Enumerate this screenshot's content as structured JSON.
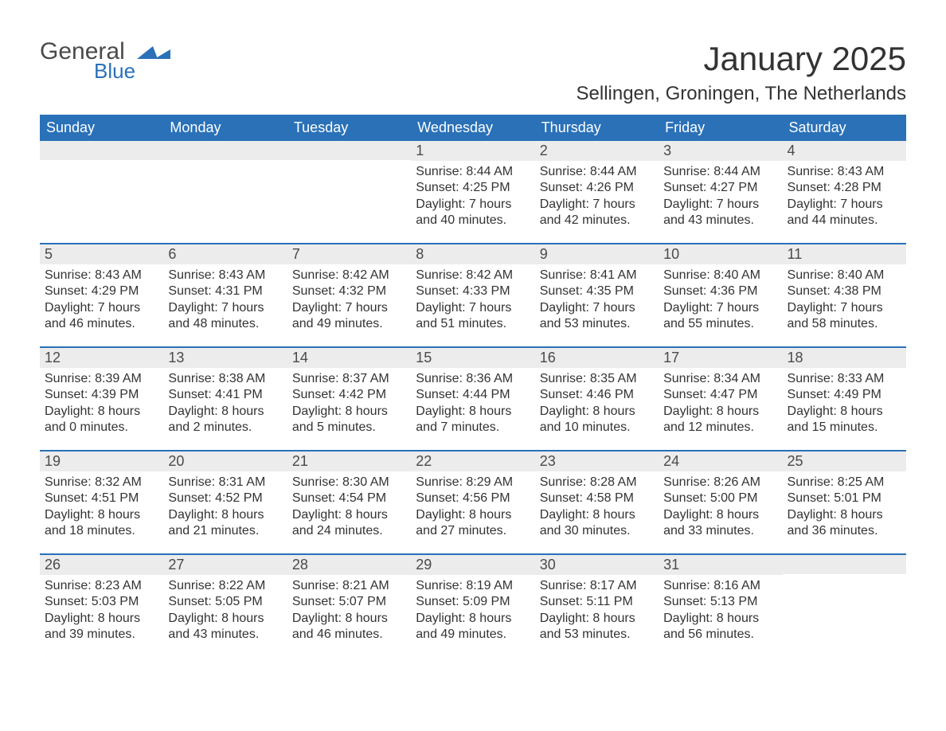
{
  "brand": {
    "general": "General",
    "blue": "Blue",
    "icon_color": "#2a71b8"
  },
  "header": {
    "title": "January 2025",
    "location": "Sellingen, Groningen, The Netherlands"
  },
  "colors": {
    "header_bg": "#2a71b8",
    "header_text": "#ffffff",
    "daynum_bg": "#ececec",
    "week_border": "#2a71b8",
    "body_text": "#333333",
    "page_bg": "#ffffff"
  },
  "fonts": {
    "title_size_pt": 32,
    "location_size_pt": 18,
    "header_size_pt": 14,
    "body_size_pt": 12
  },
  "day_names": [
    "Sunday",
    "Monday",
    "Tuesday",
    "Wednesday",
    "Thursday",
    "Friday",
    "Saturday"
  ],
  "weeks": [
    [
      null,
      null,
      null,
      {
        "n": "1",
        "sunrise": "Sunrise: 8:44 AM",
        "sunset": "Sunset: 4:25 PM",
        "dl1": "Daylight: 7 hours",
        "dl2": "and 40 minutes."
      },
      {
        "n": "2",
        "sunrise": "Sunrise: 8:44 AM",
        "sunset": "Sunset: 4:26 PM",
        "dl1": "Daylight: 7 hours",
        "dl2": "and 42 minutes."
      },
      {
        "n": "3",
        "sunrise": "Sunrise: 8:44 AM",
        "sunset": "Sunset: 4:27 PM",
        "dl1": "Daylight: 7 hours",
        "dl2": "and 43 minutes."
      },
      {
        "n": "4",
        "sunrise": "Sunrise: 8:43 AM",
        "sunset": "Sunset: 4:28 PM",
        "dl1": "Daylight: 7 hours",
        "dl2": "and 44 minutes."
      }
    ],
    [
      {
        "n": "5",
        "sunrise": "Sunrise: 8:43 AM",
        "sunset": "Sunset: 4:29 PM",
        "dl1": "Daylight: 7 hours",
        "dl2": "and 46 minutes."
      },
      {
        "n": "6",
        "sunrise": "Sunrise: 8:43 AM",
        "sunset": "Sunset: 4:31 PM",
        "dl1": "Daylight: 7 hours",
        "dl2": "and 48 minutes."
      },
      {
        "n": "7",
        "sunrise": "Sunrise: 8:42 AM",
        "sunset": "Sunset: 4:32 PM",
        "dl1": "Daylight: 7 hours",
        "dl2": "and 49 minutes."
      },
      {
        "n": "8",
        "sunrise": "Sunrise: 8:42 AM",
        "sunset": "Sunset: 4:33 PM",
        "dl1": "Daylight: 7 hours",
        "dl2": "and 51 minutes."
      },
      {
        "n": "9",
        "sunrise": "Sunrise: 8:41 AM",
        "sunset": "Sunset: 4:35 PM",
        "dl1": "Daylight: 7 hours",
        "dl2": "and 53 minutes."
      },
      {
        "n": "10",
        "sunrise": "Sunrise: 8:40 AM",
        "sunset": "Sunset: 4:36 PM",
        "dl1": "Daylight: 7 hours",
        "dl2": "and 55 minutes."
      },
      {
        "n": "11",
        "sunrise": "Sunrise: 8:40 AM",
        "sunset": "Sunset: 4:38 PM",
        "dl1": "Daylight: 7 hours",
        "dl2": "and 58 minutes."
      }
    ],
    [
      {
        "n": "12",
        "sunrise": "Sunrise: 8:39 AM",
        "sunset": "Sunset: 4:39 PM",
        "dl1": "Daylight: 8 hours",
        "dl2": "and 0 minutes."
      },
      {
        "n": "13",
        "sunrise": "Sunrise: 8:38 AM",
        "sunset": "Sunset: 4:41 PM",
        "dl1": "Daylight: 8 hours",
        "dl2": "and 2 minutes."
      },
      {
        "n": "14",
        "sunrise": "Sunrise: 8:37 AM",
        "sunset": "Sunset: 4:42 PM",
        "dl1": "Daylight: 8 hours",
        "dl2": "and 5 minutes."
      },
      {
        "n": "15",
        "sunrise": "Sunrise: 8:36 AM",
        "sunset": "Sunset: 4:44 PM",
        "dl1": "Daylight: 8 hours",
        "dl2": "and 7 minutes."
      },
      {
        "n": "16",
        "sunrise": "Sunrise: 8:35 AM",
        "sunset": "Sunset: 4:46 PM",
        "dl1": "Daylight: 8 hours",
        "dl2": "and 10 minutes."
      },
      {
        "n": "17",
        "sunrise": "Sunrise: 8:34 AM",
        "sunset": "Sunset: 4:47 PM",
        "dl1": "Daylight: 8 hours",
        "dl2": "and 12 minutes."
      },
      {
        "n": "18",
        "sunrise": "Sunrise: 8:33 AM",
        "sunset": "Sunset: 4:49 PM",
        "dl1": "Daylight: 8 hours",
        "dl2": "and 15 minutes."
      }
    ],
    [
      {
        "n": "19",
        "sunrise": "Sunrise: 8:32 AM",
        "sunset": "Sunset: 4:51 PM",
        "dl1": "Daylight: 8 hours",
        "dl2": "and 18 minutes."
      },
      {
        "n": "20",
        "sunrise": "Sunrise: 8:31 AM",
        "sunset": "Sunset: 4:52 PM",
        "dl1": "Daylight: 8 hours",
        "dl2": "and 21 minutes."
      },
      {
        "n": "21",
        "sunrise": "Sunrise: 8:30 AM",
        "sunset": "Sunset: 4:54 PM",
        "dl1": "Daylight: 8 hours",
        "dl2": "and 24 minutes."
      },
      {
        "n": "22",
        "sunrise": "Sunrise: 8:29 AM",
        "sunset": "Sunset: 4:56 PM",
        "dl1": "Daylight: 8 hours",
        "dl2": "and 27 minutes."
      },
      {
        "n": "23",
        "sunrise": "Sunrise: 8:28 AM",
        "sunset": "Sunset: 4:58 PM",
        "dl1": "Daylight: 8 hours",
        "dl2": "and 30 minutes."
      },
      {
        "n": "24",
        "sunrise": "Sunrise: 8:26 AM",
        "sunset": "Sunset: 5:00 PM",
        "dl1": "Daylight: 8 hours",
        "dl2": "and 33 minutes."
      },
      {
        "n": "25",
        "sunrise": "Sunrise: 8:25 AM",
        "sunset": "Sunset: 5:01 PM",
        "dl1": "Daylight: 8 hours",
        "dl2": "and 36 minutes."
      }
    ],
    [
      {
        "n": "26",
        "sunrise": "Sunrise: 8:23 AM",
        "sunset": "Sunset: 5:03 PM",
        "dl1": "Daylight: 8 hours",
        "dl2": "and 39 minutes."
      },
      {
        "n": "27",
        "sunrise": "Sunrise: 8:22 AM",
        "sunset": "Sunset: 5:05 PM",
        "dl1": "Daylight: 8 hours",
        "dl2": "and 43 minutes."
      },
      {
        "n": "28",
        "sunrise": "Sunrise: 8:21 AM",
        "sunset": "Sunset: 5:07 PM",
        "dl1": "Daylight: 8 hours",
        "dl2": "and 46 minutes."
      },
      {
        "n": "29",
        "sunrise": "Sunrise: 8:19 AM",
        "sunset": "Sunset: 5:09 PM",
        "dl1": "Daylight: 8 hours",
        "dl2": "and 49 minutes."
      },
      {
        "n": "30",
        "sunrise": "Sunrise: 8:17 AM",
        "sunset": "Sunset: 5:11 PM",
        "dl1": "Daylight: 8 hours",
        "dl2": "and 53 minutes."
      },
      {
        "n": "31",
        "sunrise": "Sunrise: 8:16 AM",
        "sunset": "Sunset: 5:13 PM",
        "dl1": "Daylight: 8 hours",
        "dl2": "and 56 minutes."
      },
      null
    ]
  ]
}
